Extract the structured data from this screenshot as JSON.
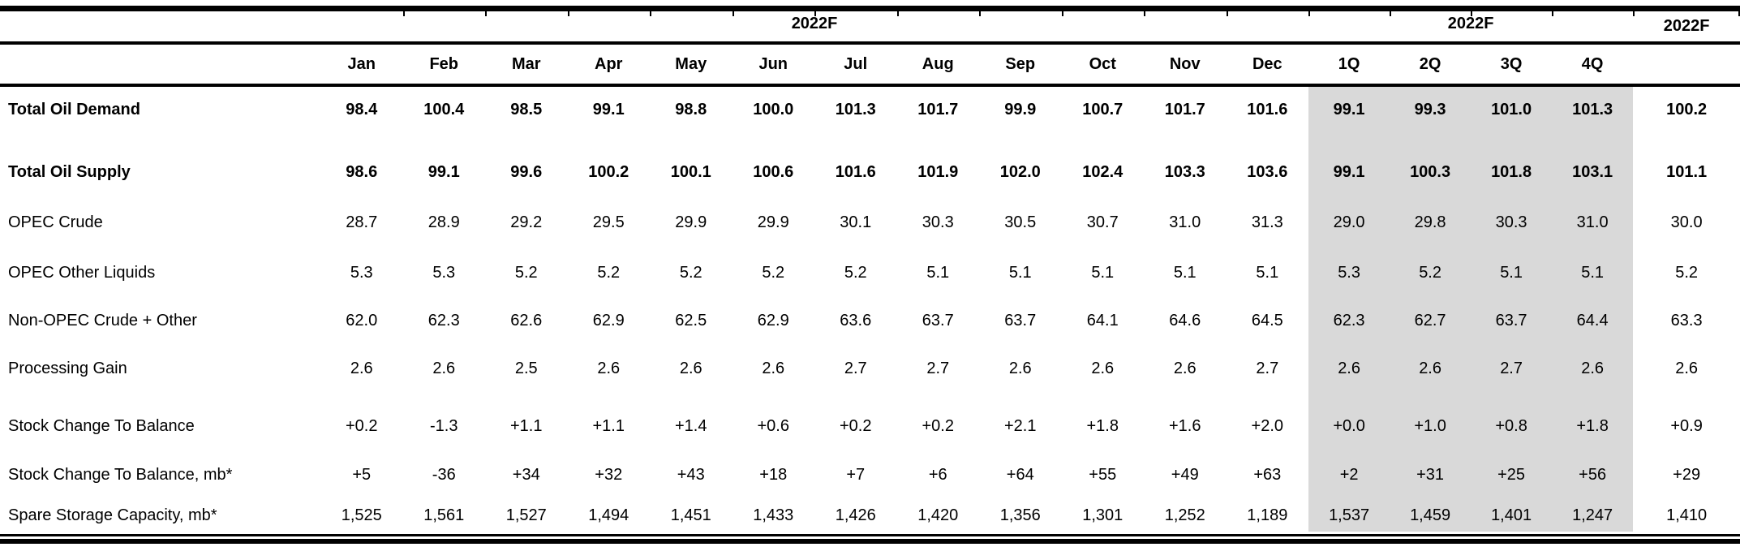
{
  "header": {
    "group_months": "2022F",
    "group_quarters": "2022F",
    "group_annual": "2022F",
    "columns": [
      "Jan",
      "Feb",
      "Mar",
      "Apr",
      "May",
      "Jun",
      "Jul",
      "Aug",
      "Sep",
      "Oct",
      "Nov",
      "Dec",
      "1Q",
      "2Q",
      "3Q",
      "4Q",
      ""
    ]
  },
  "colors": {
    "quarter_band": "#d9d9d9",
    "text": "#000000",
    "rule": "#000000"
  },
  "table": {
    "rows": [
      {
        "name": "total-oil-demand",
        "bold": true,
        "label": "Total Oil Demand",
        "values": [
          "98.4",
          "100.4",
          "98.5",
          "99.1",
          "98.8",
          "100.0",
          "101.3",
          "101.7",
          "99.9",
          "100.7",
          "101.7",
          "101.6",
          "99.1",
          "99.3",
          "101.0",
          "101.3",
          "100.2"
        ]
      },
      {
        "name": "spacer-1",
        "spacer": true,
        "label": ""
      },
      {
        "name": "total-oil-supply",
        "bold": true,
        "label": "Total Oil Supply",
        "values": [
          "98.6",
          "99.1",
          "99.6",
          "100.2",
          "100.1",
          "100.6",
          "101.6",
          "101.9",
          "102.0",
          "102.4",
          "103.3",
          "103.6",
          "99.1",
          "100.3",
          "101.8",
          "103.1",
          "101.1"
        ]
      },
      {
        "name": "opec-crude",
        "bold": false,
        "label": "OPEC Crude",
        "values": [
          "28.7",
          "28.9",
          "29.2",
          "29.5",
          "29.9",
          "29.9",
          "30.1",
          "30.3",
          "30.5",
          "30.7",
          "31.0",
          "31.3",
          "29.0",
          "29.8",
          "30.3",
          "31.0",
          "30.0"
        ]
      },
      {
        "name": "opec-other-liquids",
        "bold": false,
        "label": "OPEC Other Liquids",
        "values": [
          "5.3",
          "5.3",
          "5.2",
          "5.2",
          "5.2",
          "5.2",
          "5.2",
          "5.1",
          "5.1",
          "5.1",
          "5.1",
          "5.1",
          "5.3",
          "5.2",
          "5.1",
          "5.1",
          "5.2"
        ]
      },
      {
        "name": "non-opec-crude-other",
        "bold": false,
        "label": "Non-OPEC Crude + Other",
        "values": [
          "62.0",
          "62.3",
          "62.6",
          "62.9",
          "62.5",
          "62.9",
          "63.6",
          "63.7",
          "63.7",
          "64.1",
          "64.6",
          "64.5",
          "62.3",
          "62.7",
          "63.7",
          "64.4",
          "63.3"
        ]
      },
      {
        "name": "processing-gain",
        "bold": false,
        "label": "Processing Gain",
        "values": [
          "2.6",
          "2.6",
          "2.5",
          "2.6",
          "2.6",
          "2.6",
          "2.7",
          "2.7",
          "2.6",
          "2.6",
          "2.6",
          "2.7",
          "2.6",
          "2.6",
          "2.7",
          "2.6",
          "2.6"
        ]
      },
      {
        "name": "spacer-2",
        "spacer": true,
        "label": ""
      },
      {
        "name": "stock-change-to-balance",
        "bold": false,
        "label": "Stock Change To Balance",
        "values": [
          "+0.2",
          "-1.3",
          "+1.1",
          "+1.1",
          "+1.4",
          "+0.6",
          "+0.2",
          "+0.2",
          "+2.1",
          "+1.8",
          "+1.6",
          "+2.0",
          "+0.0",
          "+1.0",
          "+0.8",
          "+1.8",
          "+0.9"
        ]
      },
      {
        "name": "stock-change-to-balance-mb",
        "bold": false,
        "label": "Stock Change To Balance, mb*",
        "values": [
          "+5",
          "-36",
          "+34",
          "+32",
          "+43",
          "+18",
          "+7",
          "+6",
          "+64",
          "+55",
          "+49",
          "+63",
          "+2",
          "+31",
          "+25",
          "+56",
          "+29"
        ]
      },
      {
        "name": "spare-storage-capacity-mb",
        "bold": false,
        "label": "Spare Storage Capacity, mb*",
        "values": [
          "1,525",
          "1,561",
          "1,527",
          "1,494",
          "1,451",
          "1,433",
          "1,426",
          "1,420",
          "1,356",
          "1,301",
          "1,252",
          "1,189",
          "1,537",
          "1,459",
          "1,401",
          "1,247",
          "1,410"
        ]
      }
    ]
  }
}
